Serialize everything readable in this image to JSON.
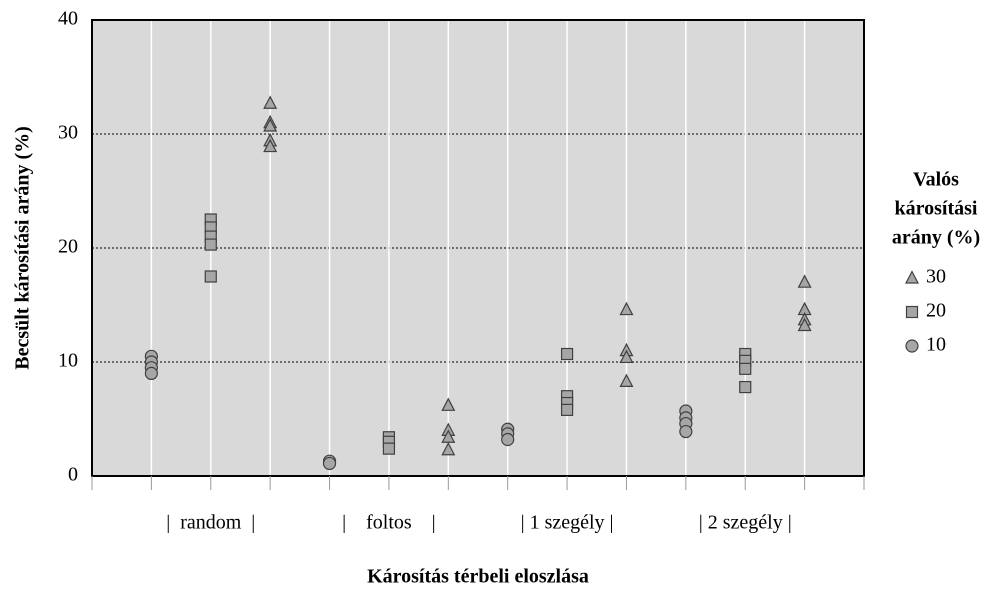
{
  "chart_data": {
    "type": "scatter",
    "ylabel": "Becsült károsítási arány (%)",
    "xlabel": "Károsítás térbeli eloszlása",
    "ylim": [
      0,
      40
    ],
    "yticks": [
      0,
      10,
      20,
      30,
      40
    ],
    "xlim": [
      0,
      13
    ],
    "xticks": [
      0,
      1,
      2,
      3,
      4,
      5,
      6,
      7,
      8,
      9,
      10,
      11,
      12,
      13
    ],
    "grid": true,
    "groups": [
      {
        "label": "|  random  |",
        "x": 2
      },
      {
        "label": "|    foltos    |",
        "x": 5
      },
      {
        "label": "| 1 szegély |",
        "x": 8
      },
      {
        "label": "| 2 szegély |",
        "x": 11
      }
    ],
    "legend_title": [
      "Valós",
      "károsítási",
      "arány (%)"
    ],
    "series": [
      {
        "name": "30",
        "marker": "triangle",
        "color": "#a6a6a6",
        "x": [
          3,
          3,
          3,
          3,
          3,
          6,
          6,
          6,
          6,
          9,
          9,
          9,
          9,
          12,
          12,
          12,
          12
        ],
        "values": [
          32.7,
          31,
          30.7,
          29.4,
          28.9,
          6.2,
          4.0,
          3.4,
          2.3,
          14.6,
          11.0,
          10.4,
          8.3,
          17.0,
          14.6,
          13.7,
          13.2
        ]
      },
      {
        "name": "20",
        "marker": "square",
        "color": "#a6a6a6",
        "x": [
          2,
          2,
          2,
          2,
          2,
          5,
          5,
          5,
          8,
          8,
          8,
          8,
          11,
          11,
          11,
          11
        ],
        "values": [
          22.5,
          21.8,
          21.0,
          20.3,
          17.5,
          3.4,
          3.0,
          2.4,
          10.7,
          7.0,
          6.4,
          5.8,
          10.7,
          10.1,
          9.4,
          7.8
        ]
      },
      {
        "name": "10",
        "marker": "circle",
        "color": "#a6a6a6",
        "x": [
          1,
          1,
          1,
          1,
          4,
          4,
          7,
          7,
          7,
          10,
          10,
          10,
          10
        ],
        "values": [
          10.5,
          10.0,
          9.5,
          9.0,
          1.3,
          1.1,
          4.1,
          3.7,
          3.2,
          5.7,
          5.1,
          4.6,
          3.9
        ]
      }
    ]
  }
}
